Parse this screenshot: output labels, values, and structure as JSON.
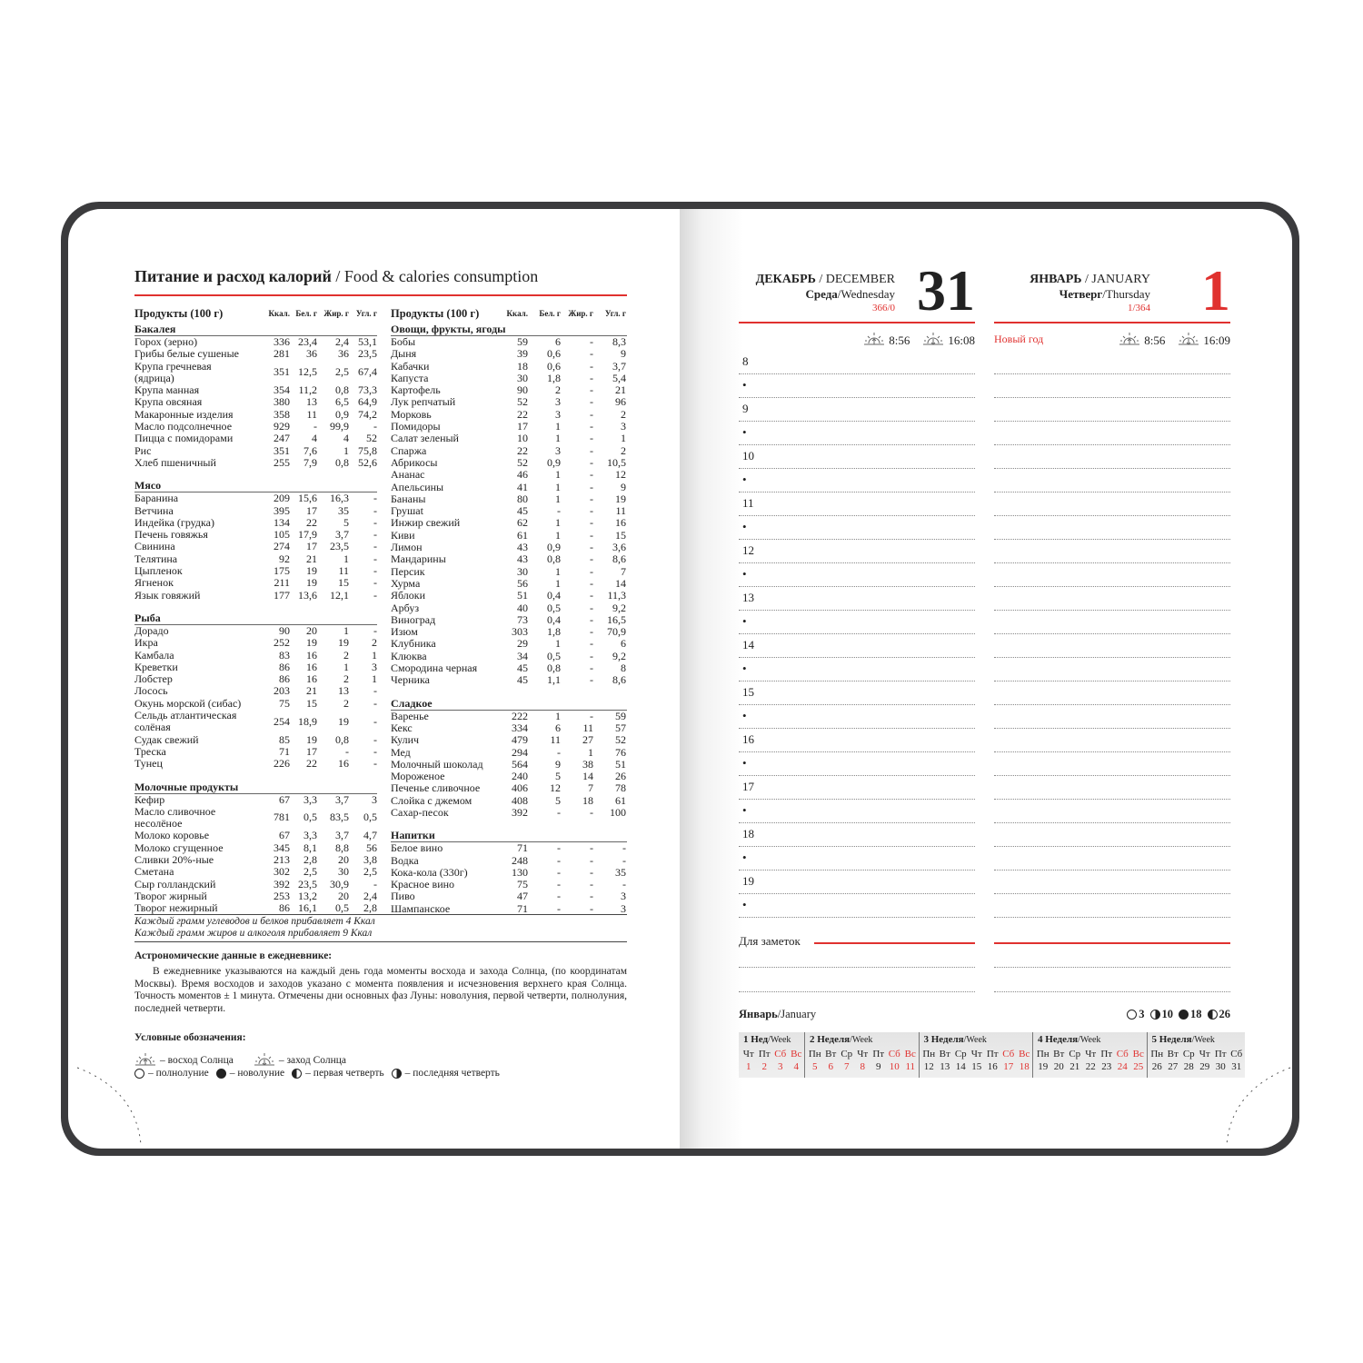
{
  "left": {
    "title_ru": "Питание и расход калорий",
    "title_en": " / Food & calories consumption",
    "table_header": {
      "product": "Продукты (100 г)",
      "kcal": "Ккал.",
      "protein": "Бел. г",
      "fat": "Жир. г",
      "carbs": "Угл. г"
    },
    "col1": [
      {
        "section": "Бакалея",
        "rows": [
          [
            "Горох (зерно)",
            "336",
            "23,4",
            "2,4",
            "53,1"
          ],
          [
            "Грибы белые сушеные",
            "281",
            "36",
            "36",
            "23,5"
          ],
          [
            "Крупа гречневая\n(ядрица)",
            "351",
            "12,5",
            "2,5",
            "67,4"
          ],
          [
            "Крупа манная",
            "354",
            "11,2",
            "0,8",
            "73,3"
          ],
          [
            "Крупа овсяная",
            "380",
            "13",
            "6,5",
            "64,9"
          ],
          [
            "Макаронные изделия",
            "358",
            "11",
            "0,9",
            "74,2"
          ],
          [
            "Масло подсолнечное",
            "929",
            "-",
            "99,9",
            "-"
          ],
          [
            "Пицца с помидорами",
            "247",
            "4",
            "4",
            "52"
          ],
          [
            "Рис",
            "351",
            "7,6",
            "1",
            "75,8"
          ],
          [
            "Хлеб пшеничный",
            "255",
            "7,9",
            "0,8",
            "52,6"
          ]
        ]
      },
      {
        "section": "Мясо",
        "rows": [
          [
            "Баранина",
            "209",
            "15,6",
            "16,3",
            "-"
          ],
          [
            "Ветчина",
            "395",
            "17",
            "35",
            "-"
          ],
          [
            "Индейка (грудка)",
            "134",
            "22",
            "5",
            "-"
          ],
          [
            "Печень говяжья",
            "105",
            "17,9",
            "3,7",
            "-"
          ],
          [
            "Свинина",
            "274",
            "17",
            "23,5",
            "-"
          ],
          [
            "Телятина",
            "92",
            "21",
            "1",
            "-"
          ],
          [
            "Цыпленок",
            "175",
            "19",
            "11",
            "-"
          ],
          [
            "Ягненок",
            "211",
            "19",
            "15",
            "-"
          ],
          [
            "Язык говяжий",
            "177",
            "13,6",
            "12,1",
            "-"
          ]
        ]
      },
      {
        "section": "Рыба",
        "rows": [
          [
            "Дорадо",
            "90",
            "20",
            "1",
            "-"
          ],
          [
            "Икра",
            "252",
            "19",
            "19",
            "2"
          ],
          [
            "Камбала",
            "83",
            "16",
            "2",
            "1"
          ],
          [
            "Креветки",
            "86",
            "16",
            "1",
            "3"
          ],
          [
            "Лобстер",
            "86",
            "16",
            "2",
            "1"
          ],
          [
            "Лосось",
            "203",
            "21",
            "13",
            "-"
          ],
          [
            "Окунь морской (сибас)",
            "75",
            "15",
            "2",
            "-"
          ],
          [
            "Сельдь атлантическая\nсолёная",
            "254",
            "18,9",
            "19",
            "-"
          ],
          [
            "Судак свежий",
            "85",
            "19",
            "0,8",
            "-"
          ],
          [
            "Треска",
            "71",
            "17",
            "-",
            "-"
          ],
          [
            "Тунец",
            "226",
            "22",
            "16",
            "-"
          ]
        ]
      },
      {
        "section": "Молочные продукты",
        "rows": [
          [
            "Кефир",
            "67",
            "3,3",
            "3,7",
            "3"
          ],
          [
            "Масло сливочное\nнесолёное",
            "781",
            "0,5",
            "83,5",
            "0,5"
          ],
          [
            "Молоко коровье",
            "67",
            "3,3",
            "3,7",
            "4,7"
          ],
          [
            "Молоко сгущенное",
            "345",
            "8,1",
            "8,8",
            "56"
          ],
          [
            "Сливки 20%-ные",
            "213",
            "2,8",
            "20",
            "3,8"
          ],
          [
            "Сметана",
            "302",
            "2,5",
            "30",
            "2,5"
          ],
          [
            "Сыр голландский",
            "392",
            "23,5",
            "30,9",
            "-"
          ],
          [
            "Творог жирный",
            "253",
            "13,2",
            "20",
            "2,4"
          ],
          [
            "Творог нежирный",
            "86",
            "16,1",
            "0,5",
            "2,8"
          ]
        ]
      }
    ],
    "col2": [
      {
        "section": "Овощи, фрукты, ягоды",
        "rows": [
          [
            "Бобы",
            "59",
            "6",
            "-",
            "8,3"
          ],
          [
            "Дыня",
            "39",
            "0,6",
            "-",
            "9"
          ],
          [
            "Кабачки",
            "18",
            "0,6",
            "-",
            "3,7"
          ],
          [
            "Капуста",
            "30",
            "1,8",
            "-",
            "5,4"
          ],
          [
            "Картофель",
            "90",
            "2",
            "-",
            "21"
          ],
          [
            "Лук репчатый",
            "52",
            "3",
            "-",
            "96"
          ],
          [
            "Морковь",
            "22",
            "3",
            "-",
            "2"
          ],
          [
            "Помидоры",
            "17",
            "1",
            "-",
            "3"
          ],
          [
            "Салат зеленый",
            "10",
            "1",
            "-",
            "1"
          ],
          [
            "Спаржа",
            "22",
            "3",
            "-",
            "2"
          ],
          [
            "Абрикосы",
            "52",
            "0,9",
            "-",
            "10,5"
          ],
          [
            "Ананас",
            "46",
            "1",
            "-",
            "12"
          ],
          [
            "Апельсины",
            "41",
            "1",
            "-",
            "9"
          ],
          [
            "Бананы",
            "80",
            "1",
            "-",
            "19"
          ],
          [
            "Грушat",
            "45",
            "-",
            "-",
            "11"
          ],
          [
            "Инжир свежий",
            "62",
            "1",
            "-",
            "16"
          ],
          [
            "Киви",
            "61",
            "1",
            "-",
            "15"
          ],
          [
            "Лимон",
            "43",
            "0,9",
            "-",
            "3,6"
          ],
          [
            "Мандарины",
            "43",
            "0,8",
            "-",
            "8,6"
          ],
          [
            "Персик",
            "30",
            "1",
            "-",
            "7"
          ],
          [
            "Хурма",
            "56",
            "1",
            "-",
            "14"
          ],
          [
            "Яблоки",
            "51",
            "0,4",
            "-",
            "11,3"
          ],
          [
            "Арбуз",
            "40",
            "0,5",
            "-",
            "9,2"
          ],
          [
            "Виноград",
            "73",
            "0,4",
            "-",
            "16,5"
          ],
          [
            "Изюм",
            "303",
            "1,8",
            "-",
            "70,9"
          ],
          [
            "Клубника",
            "29",
            "1",
            "-",
            "6"
          ],
          [
            "Клюква",
            "34",
            "0,5",
            "-",
            "9,2"
          ],
          [
            "Смородина черная",
            "45",
            "0,8",
            "-",
            "8"
          ],
          [
            "Черника",
            "45",
            "1,1",
            "-",
            "8,6"
          ]
        ]
      },
      {
        "section": "Сладкое",
        "rows": [
          [
            "Варенье",
            "222",
            "1",
            "-",
            "59"
          ],
          [
            "Кекс",
            "334",
            "6",
            "11",
            "57"
          ],
          [
            "Кулич",
            "479",
            "11",
            "27",
            "52"
          ],
          [
            "Мед",
            "294",
            "-",
            "1",
            "76"
          ],
          [
            "Молочный шоколад",
            "564",
            "9",
            "38",
            "51"
          ],
          [
            "Мороженое",
            "240",
            "5",
            "14",
            "26"
          ],
          [
            "Печенье сливочное",
            "406",
            "12",
            "7",
            "78"
          ],
          [
            "Слойка с джемом",
            "408",
            "5",
            "18",
            "61"
          ],
          [
            "Сахар-песок",
            "392",
            "-",
            "-",
            "100"
          ]
        ]
      },
      {
        "section": "Напитки",
        "rows": [
          [
            "Белое вино",
            "71",
            "-",
            "-",
            "-"
          ],
          [
            "Водка",
            "248",
            "-",
            "-",
            "-"
          ],
          [
            "Кока-кола (330г)",
            "130",
            "-",
            "-",
            "35"
          ],
          [
            "Красное вино",
            "75",
            "-",
            "-",
            "-"
          ],
          [
            "Пиво",
            "47",
            "-",
            "-",
            "3"
          ],
          [
            "Шампанское",
            "71",
            "-",
            "-",
            "3"
          ]
        ]
      }
    ],
    "footnote1": "Каждый грамм углеводов и белков прибавляет 4 Ккал",
    "footnote2": "Каждый грамм жиров и алкоголя прибавляет 9 Ккал",
    "astro_heading": "Астрономические данные в ежедневнике:",
    "astro_text": "В ежедневнике указываются на каждый день года моменты восхода и захода Солнца, (по координатам Москвы). Время восходов и заходов указано с момента появления и исчезновения верхнего края Солнца. Точность моментов ± 1 минута. Отмечены дни основных фаз Луны: новолуния, первой четверти, полнолуния, последней четверти.",
    "legend_heading": "Условные обозначения:",
    "legend": {
      "sunrise": "– восход Солнца",
      "sunset": "– заход Солнца",
      "full": "– полнолуние",
      "new": "– новолуние",
      "first": "– первая четверть",
      "last": "– последняя четверть"
    }
  },
  "right": {
    "days": [
      {
        "month_ru": "ДЕКАБРЬ",
        "month_en": " / DECEMBER",
        "weekday_ru": "Среда",
        "weekday_en": "/Wednesday",
        "counter": "366/0",
        "day": "31",
        "day_color": "#222222",
        "holiday": "",
        "sunrise": "8:56",
        "sunset": "16:08"
      },
      {
        "month_ru": "ЯНВАРЬ",
        "month_en": " / JANUARY",
        "weekday_ru": "Четверг",
        "weekday_en": "/Thursday",
        "counter": "1/364",
        "day": "1",
        "day_color": "#e0312f",
        "holiday": "Новый год",
        "sunrise": "8:56",
        "sunset": "16:09"
      }
    ],
    "hours": [
      "8",
      "9",
      "10",
      "11",
      "12",
      "13",
      "14",
      "15",
      "16",
      "17",
      "18",
      "19"
    ],
    "bullet": "•",
    "notes_label": "Для заметок",
    "mini": {
      "month_ru": "Январь",
      "month_en": "/January",
      "phases": [
        {
          "icon": "full-moon",
          "day": "3"
        },
        {
          "icon": "first-quarter",
          "day": "10"
        },
        {
          "icon": "new-moon",
          "day": "18"
        },
        {
          "icon": "last-quarter",
          "day": "26"
        }
      ],
      "weeks": [
        {
          "num": "1",
          "label_ru": "Нед",
          "label_en": "/Week",
          "days": [
            [
              "Чт",
              "1",
              1
            ],
            [
              "Пт",
              "2",
              1
            ],
            [
              "Сб",
              "3",
              1
            ],
            [
              "Вс",
              "4",
              1
            ]
          ]
        },
        {
          "num": "2",
          "label_ru": "Неделя",
          "label_en": "/Week",
          "days": [
            [
              "Пн",
              "5",
              1
            ],
            [
              "Вт",
              "6",
              1
            ],
            [
              "Ср",
              "7",
              1
            ],
            [
              "Чт",
              "8",
              1
            ],
            [
              "Пт",
              "9",
              0
            ],
            [
              "Сб",
              "10",
              1
            ],
            [
              "Вс",
              "11",
              1
            ]
          ]
        },
        {
          "num": "3",
          "label_ru": "Неделя",
          "label_en": "/Week",
          "days": [
            [
              "Пн",
              "12",
              0
            ],
            [
              "Вт",
              "13",
              0
            ],
            [
              "Ср",
              "14",
              0
            ],
            [
              "Чт",
              "15",
              0
            ],
            [
              "Пт",
              "16",
              0
            ],
            [
              "Сб",
              "17",
              1
            ],
            [
              "Вс",
              "18",
              1
            ]
          ]
        },
        {
          "num": "4",
          "label_ru": "Неделя",
          "label_en": "/Week",
          "days": [
            [
              "Пн",
              "19",
              0
            ],
            [
              "Вт",
              "20",
              0
            ],
            [
              "Ср",
              "21",
              0
            ],
            [
              "Чт",
              "22",
              0
            ],
            [
              "Пт",
              "23",
              0
            ],
            [
              "Сб",
              "24",
              1
            ],
            [
              "Вс",
              "25",
              1
            ]
          ]
        },
        {
          "num": "5",
          "label_ru": "Неделя",
          "label_en": "/Week",
          "days": [
            [
              "Пн",
              "26",
              0
            ],
            [
              "Вт",
              "27",
              0
            ],
            [
              "Ср",
              "28",
              0
            ],
            [
              "Чт",
              "29",
              0
            ],
            [
              "Пт",
              "30",
              0
            ],
            [
              "Сб",
              "31",
              0
            ]
          ]
        }
      ]
    }
  },
  "colors": {
    "accent": "#e0312f",
    "cover": "#3b3b3d",
    "holiday_header": "#e0312f",
    "weekday_red": "#e0312f"
  }
}
